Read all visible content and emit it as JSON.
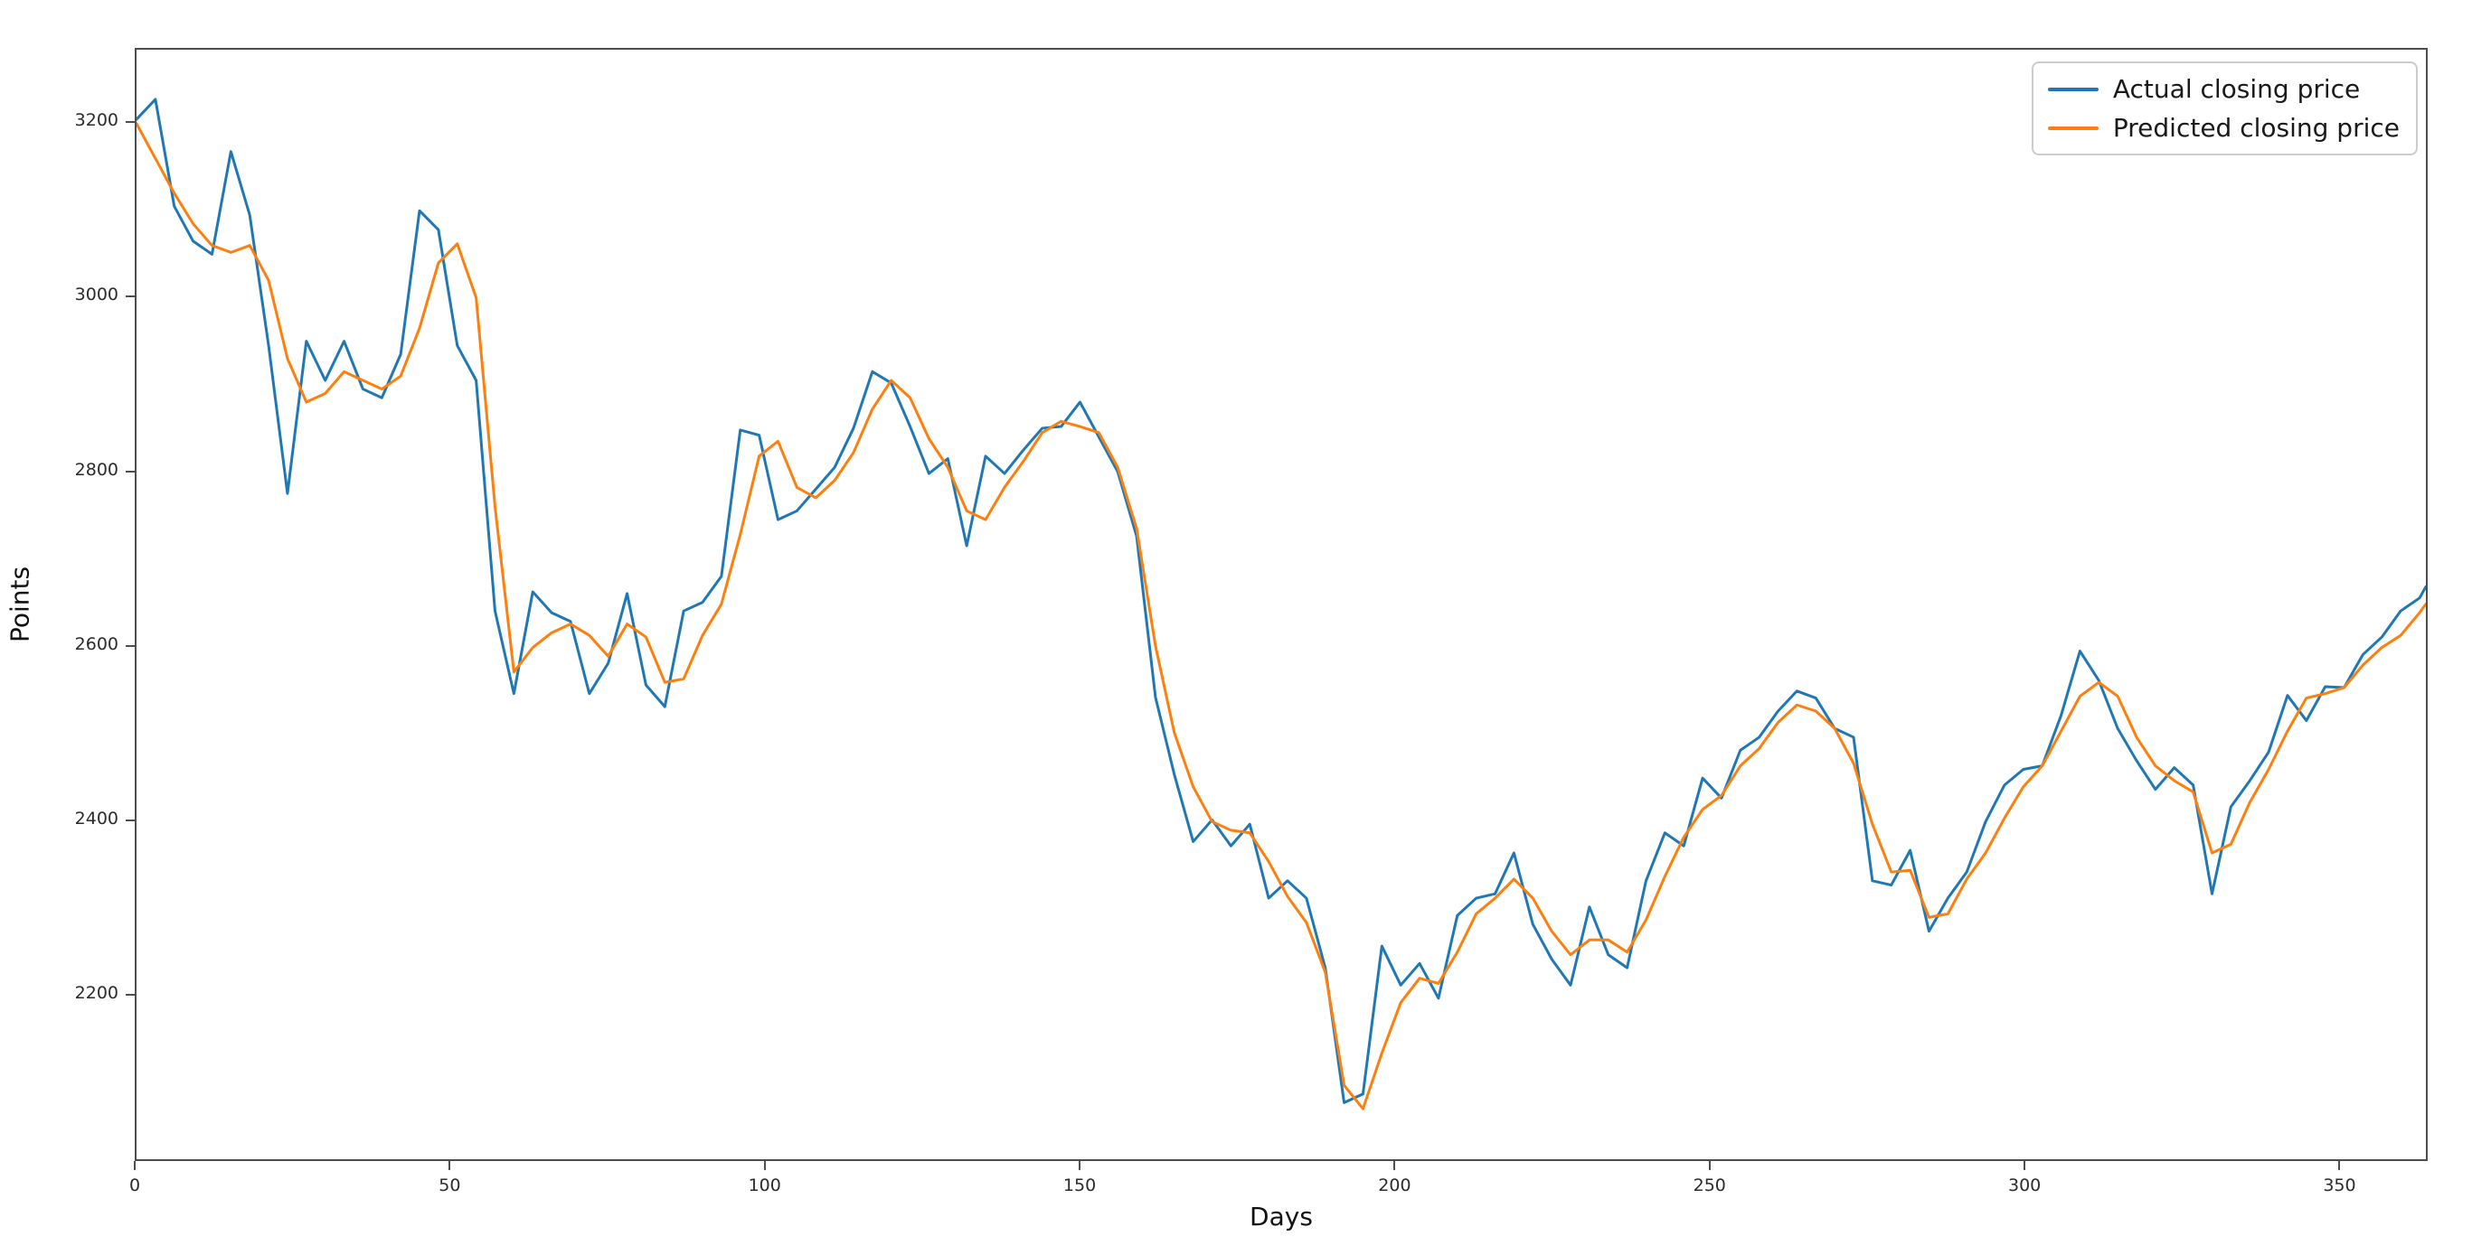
{
  "chart_data": {
    "type": "line",
    "title": "",
    "xlabel": "Days",
    "ylabel": "Points",
    "xlim": [
      0,
      364
    ],
    "ylim": [
      2010,
      3285
    ],
    "x_ticks": [
      0,
      50,
      100,
      150,
      200,
      250,
      300,
      350
    ],
    "y_ticks": [
      2200,
      2400,
      2600,
      2800,
      3000,
      3200
    ],
    "grid": false,
    "legend_position": "upper right",
    "x": [
      0,
      3,
      6,
      9,
      12,
      15,
      18,
      21,
      24,
      27,
      30,
      33,
      36,
      39,
      42,
      45,
      48,
      51,
      54,
      57,
      60,
      63,
      66,
      69,
      72,
      75,
      78,
      81,
      84,
      87,
      90,
      93,
      96,
      99,
      102,
      105,
      108,
      111,
      114,
      117,
      120,
      123,
      126,
      129,
      132,
      135,
      138,
      141,
      144,
      147,
      150,
      153,
      156,
      159,
      162,
      165,
      168,
      171,
      174,
      177,
      180,
      183,
      186,
      189,
      192,
      195,
      198,
      201,
      204,
      207,
      210,
      213,
      216,
      219,
      222,
      225,
      228,
      231,
      234,
      237,
      240,
      243,
      246,
      249,
      252,
      255,
      258,
      261,
      264,
      267,
      270,
      273,
      276,
      279,
      282,
      285,
      288,
      291,
      294,
      297,
      300,
      303,
      306,
      309,
      312,
      315,
      318,
      321,
      324,
      327,
      330,
      333,
      336,
      339,
      342,
      345,
      348,
      351,
      354,
      357,
      360,
      363,
      364
    ],
    "series": [
      {
        "name": "Actual closing price",
        "color": "#1f77b4",
        "values": [
          3205,
          3228,
          3105,
          3065,
          3050,
          3168,
          3095,
          2945,
          2775,
          2950,
          2905,
          2950,
          2895,
          2885,
          2935,
          3100,
          3078,
          2945,
          2905,
          2640,
          2545,
          2662,
          2638,
          2628,
          2545,
          2580,
          2660,
          2555,
          2530,
          2640,
          2650,
          2680,
          2848,
          2842,
          2745,
          2755,
          2780,
          2805,
          2850,
          2915,
          2902,
          2852,
          2798,
          2815,
          2715,
          2818,
          2798,
          2825,
          2850,
          2852,
          2880,
          2840,
          2800,
          2726,
          2541,
          2452,
          2375,
          2400,
          2370,
          2395,
          2310,
          2330,
          2310,
          2230,
          2075,
          2085,
          2255,
          2210,
          2235,
          2195,
          2290,
          2310,
          2315,
          2362,
          2280,
          2240,
          2210,
          2300,
          2245,
          2230,
          2330,
          2385,
          2370,
          2448,
          2425,
          2480,
          2495,
          2525,
          2548,
          2540,
          2505,
          2495,
          2330,
          2325,
          2365,
          2272,
          2310,
          2340,
          2398,
          2440,
          2458,
          2462,
          2520,
          2594,
          2560,
          2505,
          2468,
          2435,
          2460,
          2440,
          2315,
          2415,
          2445,
          2478,
          2543,
          2514,
          2553,
          2552,
          2590,
          2610,
          2640,
          2655,
          2668
        ]
      },
      {
        "name": "Predicted closing price",
        "color": "#ff7f0e",
        "values": [
          3200,
          3160,
          3120,
          3085,
          3060,
          3052,
          3060,
          3020,
          2930,
          2880,
          2890,
          2915,
          2905,
          2895,
          2910,
          2965,
          3040,
          3062,
          3000,
          2760,
          2570,
          2598,
          2615,
          2625,
          2612,
          2588,
          2625,
          2610,
          2558,
          2562,
          2612,
          2648,
          2728,
          2818,
          2835,
          2782,
          2770,
          2790,
          2822,
          2872,
          2905,
          2885,
          2838,
          2805,
          2755,
          2745,
          2782,
          2812,
          2845,
          2858,
          2852,
          2845,
          2805,
          2735,
          2600,
          2500,
          2438,
          2398,
          2388,
          2385,
          2352,
          2312,
          2282,
          2225,
          2095,
          2068,
          2132,
          2190,
          2218,
          2212,
          2248,
          2292,
          2310,
          2332,
          2310,
          2272,
          2245,
          2262,
          2262,
          2248,
          2285,
          2335,
          2380,
          2412,
          2428,
          2462,
          2482,
          2512,
          2532,
          2525,
          2505,
          2465,
          2395,
          2340,
          2342,
          2288,
          2292,
          2332,
          2362,
          2402,
          2438,
          2462,
          2502,
          2542,
          2558,
          2542,
          2495,
          2462,
          2445,
          2432,
          2362,
          2372,
          2420,
          2458,
          2502,
          2540,
          2545,
          2552,
          2578,
          2598,
          2612,
          2638,
          2648
        ]
      }
    ]
  },
  "axis": {
    "xlabel": "Days",
    "ylabel": "Points"
  }
}
